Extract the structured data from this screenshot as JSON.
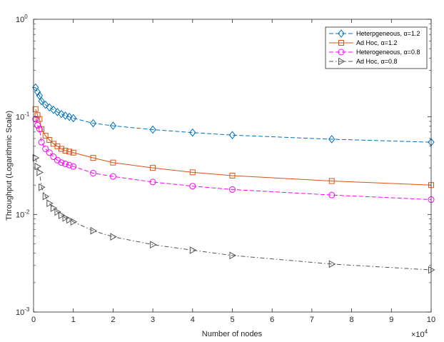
{
  "chart_data": {
    "type": "line",
    "title": "",
    "xlabel": "Number of nodes",
    "ylabel": "Throughput (Logarithmic Scale)",
    "x_scale_label": "×10",
    "x_scale_exponent": "4",
    "yscale": "log",
    "xlim": [
      0,
      10
    ],
    "ylim": [
      0.001,
      1
    ],
    "x_ticks": [
      "0",
      "1",
      "2",
      "3",
      "4",
      "5",
      "6",
      "7",
      "8",
      "9",
      "10"
    ],
    "y_ticks": [
      {
        "value": 0.001,
        "base": "10",
        "exp": "-3"
      },
      {
        "value": 0.01,
        "base": "10",
        "exp": "-2"
      },
      {
        "value": 0.1,
        "base": "10",
        "exp": "-1"
      },
      {
        "value": 1,
        "base": "10",
        "exp": "0"
      }
    ],
    "grid": false,
    "legend_position": "top-right",
    "x": [
      0.05,
      0.1,
      0.15,
      0.2,
      0.3,
      0.4,
      0.5,
      0.6,
      0.7,
      0.8,
      0.9,
      1,
      1.5,
      2,
      3,
      4,
      5,
      7.5,
      10
    ],
    "series": [
      {
        "name": "Heterpgeneous, α=1.2",
        "color": "#0072BD",
        "dash": "dashed",
        "marker": "diamond",
        "values": [
          0.2,
          0.18,
          0.165,
          0.145,
          0.133,
          0.125,
          0.118,
          0.112,
          0.107,
          0.103,
          0.1,
          0.097,
          0.086,
          0.081,
          0.074,
          0.069,
          0.065,
          0.059,
          0.055
        ]
      },
      {
        "name": "Ad Hoc, α=1.2",
        "color": "#D95319",
        "dash": "solid",
        "marker": "square",
        "values": [
          0.12,
          0.104,
          0.095,
          0.075,
          0.064,
          0.058,
          0.053,
          0.05,
          0.047,
          0.045,
          0.044,
          0.043,
          0.038,
          0.034,
          0.03,
          0.027,
          0.025,
          0.022,
          0.02
        ]
      },
      {
        "name": "Heterogeneous, α=0.8",
        "color": "#FF00FF",
        "dash": "dashed",
        "marker": "circle",
        "values": [
          0.095,
          0.082,
          0.075,
          0.055,
          0.047,
          0.043,
          0.039,
          0.036,
          0.034,
          0.033,
          0.032,
          0.031,
          0.0265,
          0.0245,
          0.0215,
          0.0195,
          0.018,
          0.0158,
          0.0142
        ]
      },
      {
        "name": "Ad Hoc, α=0.8",
        "color": "#555555",
        "dash": "dashdot",
        "marker": "triangle-right",
        "values": [
          0.038,
          0.031,
          0.027,
          0.019,
          0.0153,
          0.013,
          0.0116,
          0.0106,
          0.0098,
          0.0092,
          0.0088,
          0.0084,
          0.0068,
          0.0059,
          0.0049,
          0.0043,
          0.0038,
          0.0031,
          0.0027
        ]
      }
    ]
  }
}
